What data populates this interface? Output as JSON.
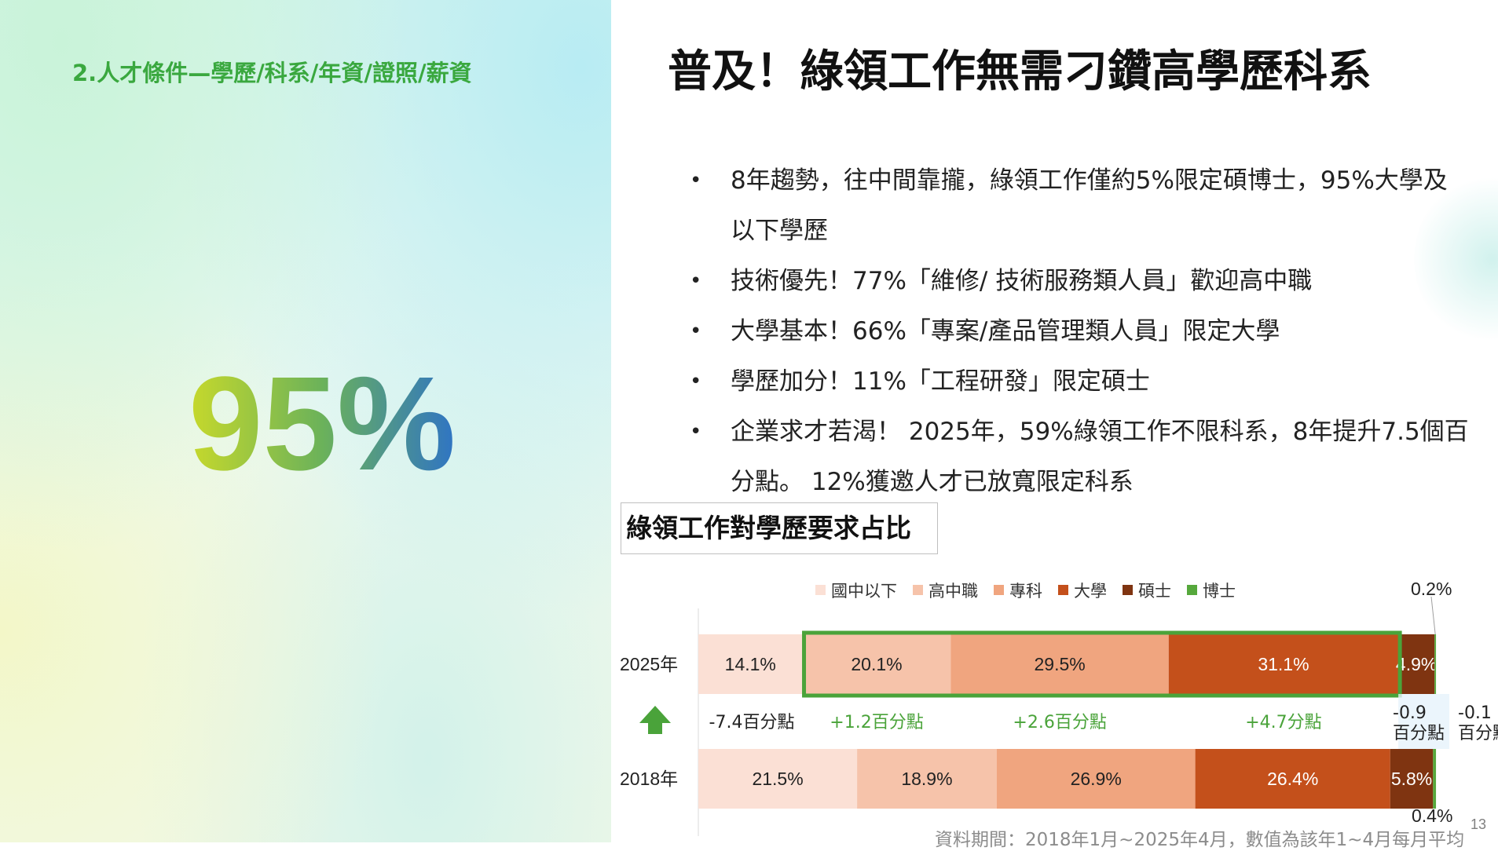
{
  "section_title": "2.人才條件—學歷/科系/年資/證照/薪資",
  "big_stat": "95%",
  "main_title": "普及！綠領工作無需刁鑽高學歷科系",
  "bullets": [
    "8年趨勢，往中間靠攏，綠領工作僅約5%限定碩博士，95%大學及以下學歷",
    "技術優先！77%「維修/ 技術服務類人員」歡迎高中職",
    "大學基本！66%「專案/產品管理類人員」限定大學",
    "學歷加分！11%「工程研發」限定碩士",
    "企業求才若渴！ 2025年，59%綠領工作不限科系，8年提升7.5個百分點。 12%獲邀人才已放寬限定科系"
  ],
  "bullet_marker": "•",
  "chart_title": "綠領工作對學歷要求占比",
  "page_number": "13",
  "source_note": "資料期間：2018年1月~2025年4月，數值為該年1~4月每月平均",
  "colors": {
    "title_green": "#3aa83f",
    "highlight_border": "#4aa33a",
    "arrow": "#4aa33a",
    "diff_positive": "#4aa33a",
    "diff_negative": "#222222"
  },
  "icons": {
    "up_arrow": "up-arrow-icon"
  },
  "chart_data": {
    "type": "bar",
    "orientation": "horizontal",
    "stacked": true,
    "categories": [
      "2025年",
      "2018年"
    ],
    "series": [
      {
        "name": "國中以下",
        "color": "#fbe0d5",
        "values": [
          14.1,
          21.5
        ],
        "labels": [
          "14.1%",
          "21.5%"
        ]
      },
      {
        "name": "高中職",
        "color": "#f6c3aa",
        "values": [
          20.1,
          18.9
        ],
        "labels": [
          "20.1%",
          "18.9%"
        ]
      },
      {
        "name": "專科",
        "color": "#f0a57f",
        "values": [
          29.5,
          26.9
        ],
        "labels": [
          "29.5%",
          "26.9%"
        ]
      },
      {
        "name": "大學",
        "color": "#c4501b",
        "values": [
          31.1,
          26.4
        ],
        "labels": [
          "31.1%",
          "26.4%"
        ]
      },
      {
        "name": "碩士",
        "color": "#7f3411",
        "values": [
          4.9,
          5.8
        ],
        "labels": [
          "4.9%",
          "5.8%"
        ]
      },
      {
        "name": "博士",
        "color": "#56a83c",
        "values": [
          0.2,
          0.4
        ],
        "labels": [
          "0.2%",
          "0.4%"
        ]
      }
    ],
    "differences": [
      {
        "series": "國中以下",
        "text": "-7.4百分點",
        "positive": false
      },
      {
        "series": "高中職",
        "text": "+1.2百分點",
        "positive": true
      },
      {
        "series": "專科",
        "text": "+2.6百分點",
        "positive": true
      },
      {
        "series": "大學",
        "text": "+4.7分點",
        "positive": true
      },
      {
        "series": "碩士",
        "text": [
          "-0.9",
          "百分點"
        ],
        "positive": false
      },
      {
        "series": "博士",
        "text": [
          "-0.1",
          "百分點"
        ],
        "positive": false
      }
    ],
    "highlight": {
      "category": "2025年",
      "series": [
        "高中職",
        "專科",
        "大學"
      ]
    },
    "legend_position": "top",
    "total": 100
  }
}
